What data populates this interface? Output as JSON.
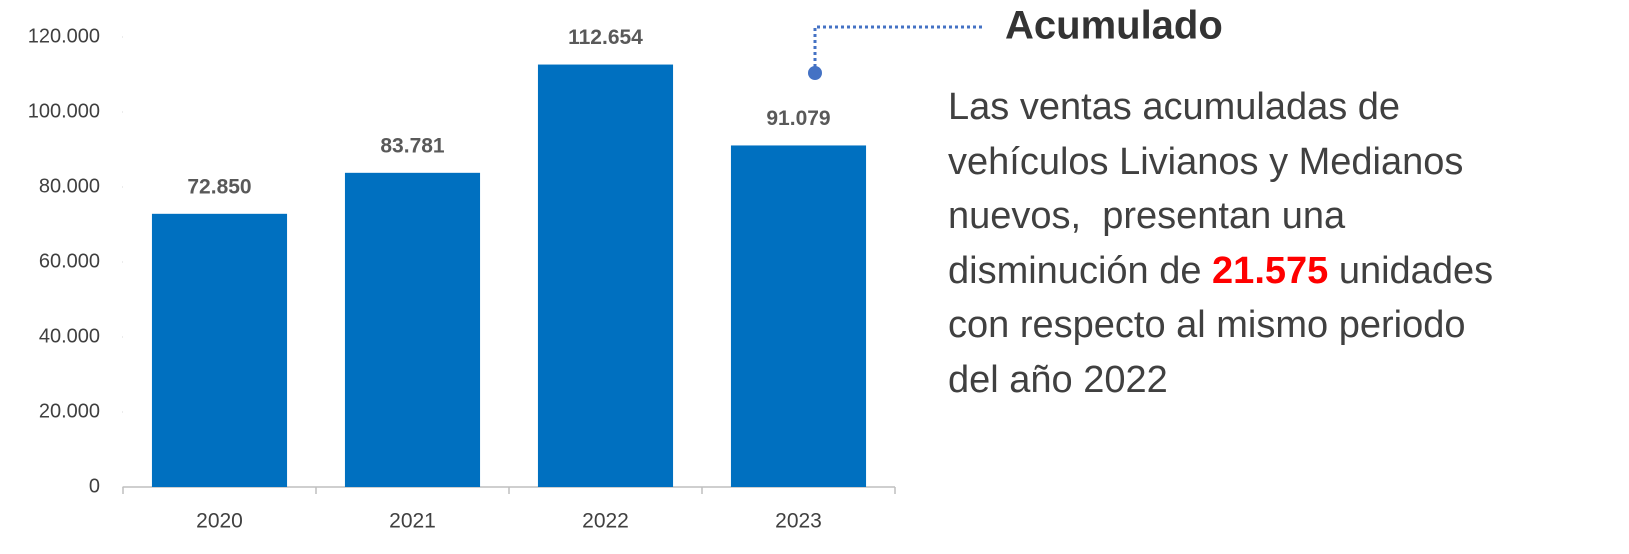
{
  "chart_data": {
    "type": "bar",
    "categories": [
      "2020",
      "2021",
      "2022",
      "2023"
    ],
    "values": [
      72850,
      83781,
      112654,
      91079
    ],
    "value_labels": [
      "72.850",
      "83.781",
      "112.654",
      "91.079"
    ],
    "color": "#0070c0",
    "ylim": [
      0,
      120000
    ],
    "yticks": [
      0,
      {
        "value": 20000,
        "label": "20.000"
      },
      {
        "value": 40000,
        "label": "40.000"
      },
      {
        "value": 60000,
        "label": "60.000"
      },
      {
        "value": 80000,
        "label": "80.000"
      },
      {
        "value": 100000,
        "label": "100.000"
      },
      {
        "value": 120000,
        "label": "120.000"
      }
    ],
    "grid": false
  },
  "annotation": {
    "heading": "Acumulado",
    "lines": [
      [
        "Las ventas acumuladas de"
      ],
      [
        "vehículos Livianos y Medianos"
      ],
      [
        "nuevos,  presentan una"
      ],
      [
        "disminución de ",
        "21.575",
        " unidades"
      ],
      [
        "con respecto al mismo periodo"
      ],
      [
        "del año 2022"
      ]
    ],
    "highlight": {
      "line": 3,
      "segment": 1,
      "color": "#ff0000"
    }
  }
}
